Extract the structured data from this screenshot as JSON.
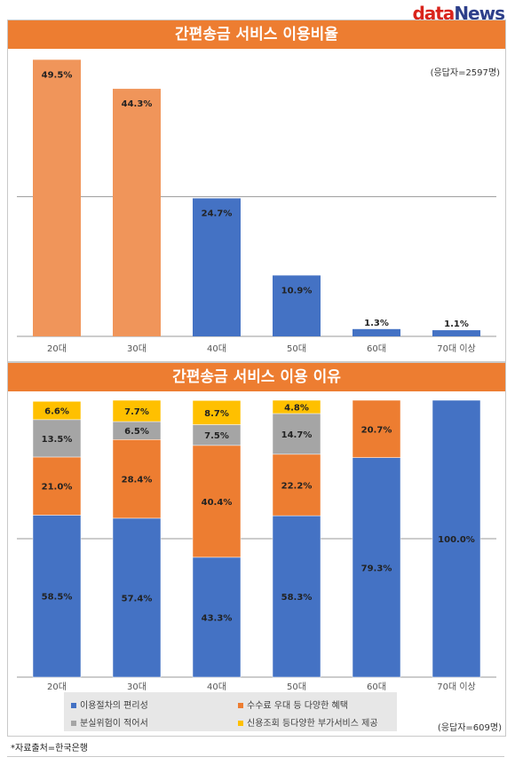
{
  "logo": {
    "part1": "data",
    "part2": "News"
  },
  "colors": {
    "orange": "#ed7d31",
    "orange_light": "#f0955a",
    "blue": "#4472c4",
    "gray": "#a5a5a5",
    "gold": "#ffc000",
    "banner": "#ed7d31"
  },
  "chart_data": [
    {
      "type": "bar",
      "title": "간편송금 서비스 이용비율",
      "note": "(응답자=2597명)",
      "categories": [
        "20대",
        "30대",
        "40대",
        "50대",
        "60대",
        "70대 이상"
      ],
      "values": [
        49.5,
        44.3,
        24.7,
        10.9,
        1.3,
        1.1
      ],
      "labels": [
        "49.5%",
        "44.3%",
        "24.7%",
        "10.9%",
        "1.3%",
        "1.1%"
      ],
      "bar_colors": [
        "#f0955a",
        "#f0955a",
        "#4472c4",
        "#4472c4",
        "#4472c4",
        "#4472c4"
      ],
      "ylim": [
        0,
        50
      ],
      "grid": true
    },
    {
      "type": "bar",
      "stacked": true,
      "title": "간편송금 서비스 이용 이유",
      "note": "(응답자=609명)",
      "categories": [
        "20대",
        "30대",
        "40대",
        "50대",
        "60대",
        "70대 이상"
      ],
      "series": [
        {
          "name": "이용절차의 편리성",
          "color": "#4472c4",
          "values": [
            58.5,
            57.4,
            43.3,
            58.3,
            79.3,
            100.0
          ],
          "labels": [
            "58.5%",
            "57.4%",
            "43.3%",
            "58.3%",
            "79.3%",
            "100.0%"
          ]
        },
        {
          "name": "수수료 우대 등 다양한 혜택",
          "color": "#ed7d31",
          "values": [
            21.0,
            28.4,
            40.4,
            22.2,
            20.7,
            0
          ],
          "labels": [
            "21.0%",
            "28.4%",
            "40.4%",
            "22.2%",
            "20.7%",
            ""
          ]
        },
        {
          "name": "분실위험이 적어서",
          "color": "#a5a5a5",
          "values": [
            13.5,
            6.5,
            7.5,
            14.7,
            0,
            0
          ],
          "labels": [
            "13.5%",
            "6.5%",
            "7.5%",
            "14.7%",
            "",
            ""
          ]
        },
        {
          "name": "신용조회 등다양한 부가서비스 제공",
          "color": "#ffc000",
          "values": [
            6.6,
            7.7,
            8.7,
            4.8,
            0,
            0
          ],
          "labels": [
            "6.6%",
            "7.7%",
            "8.7%",
            "4.8%",
            "",
            ""
          ]
        }
      ],
      "ylim": [
        0,
        100
      ],
      "grid": true,
      "legend": "bottom"
    }
  ],
  "source": "*자료출처=한국은행"
}
